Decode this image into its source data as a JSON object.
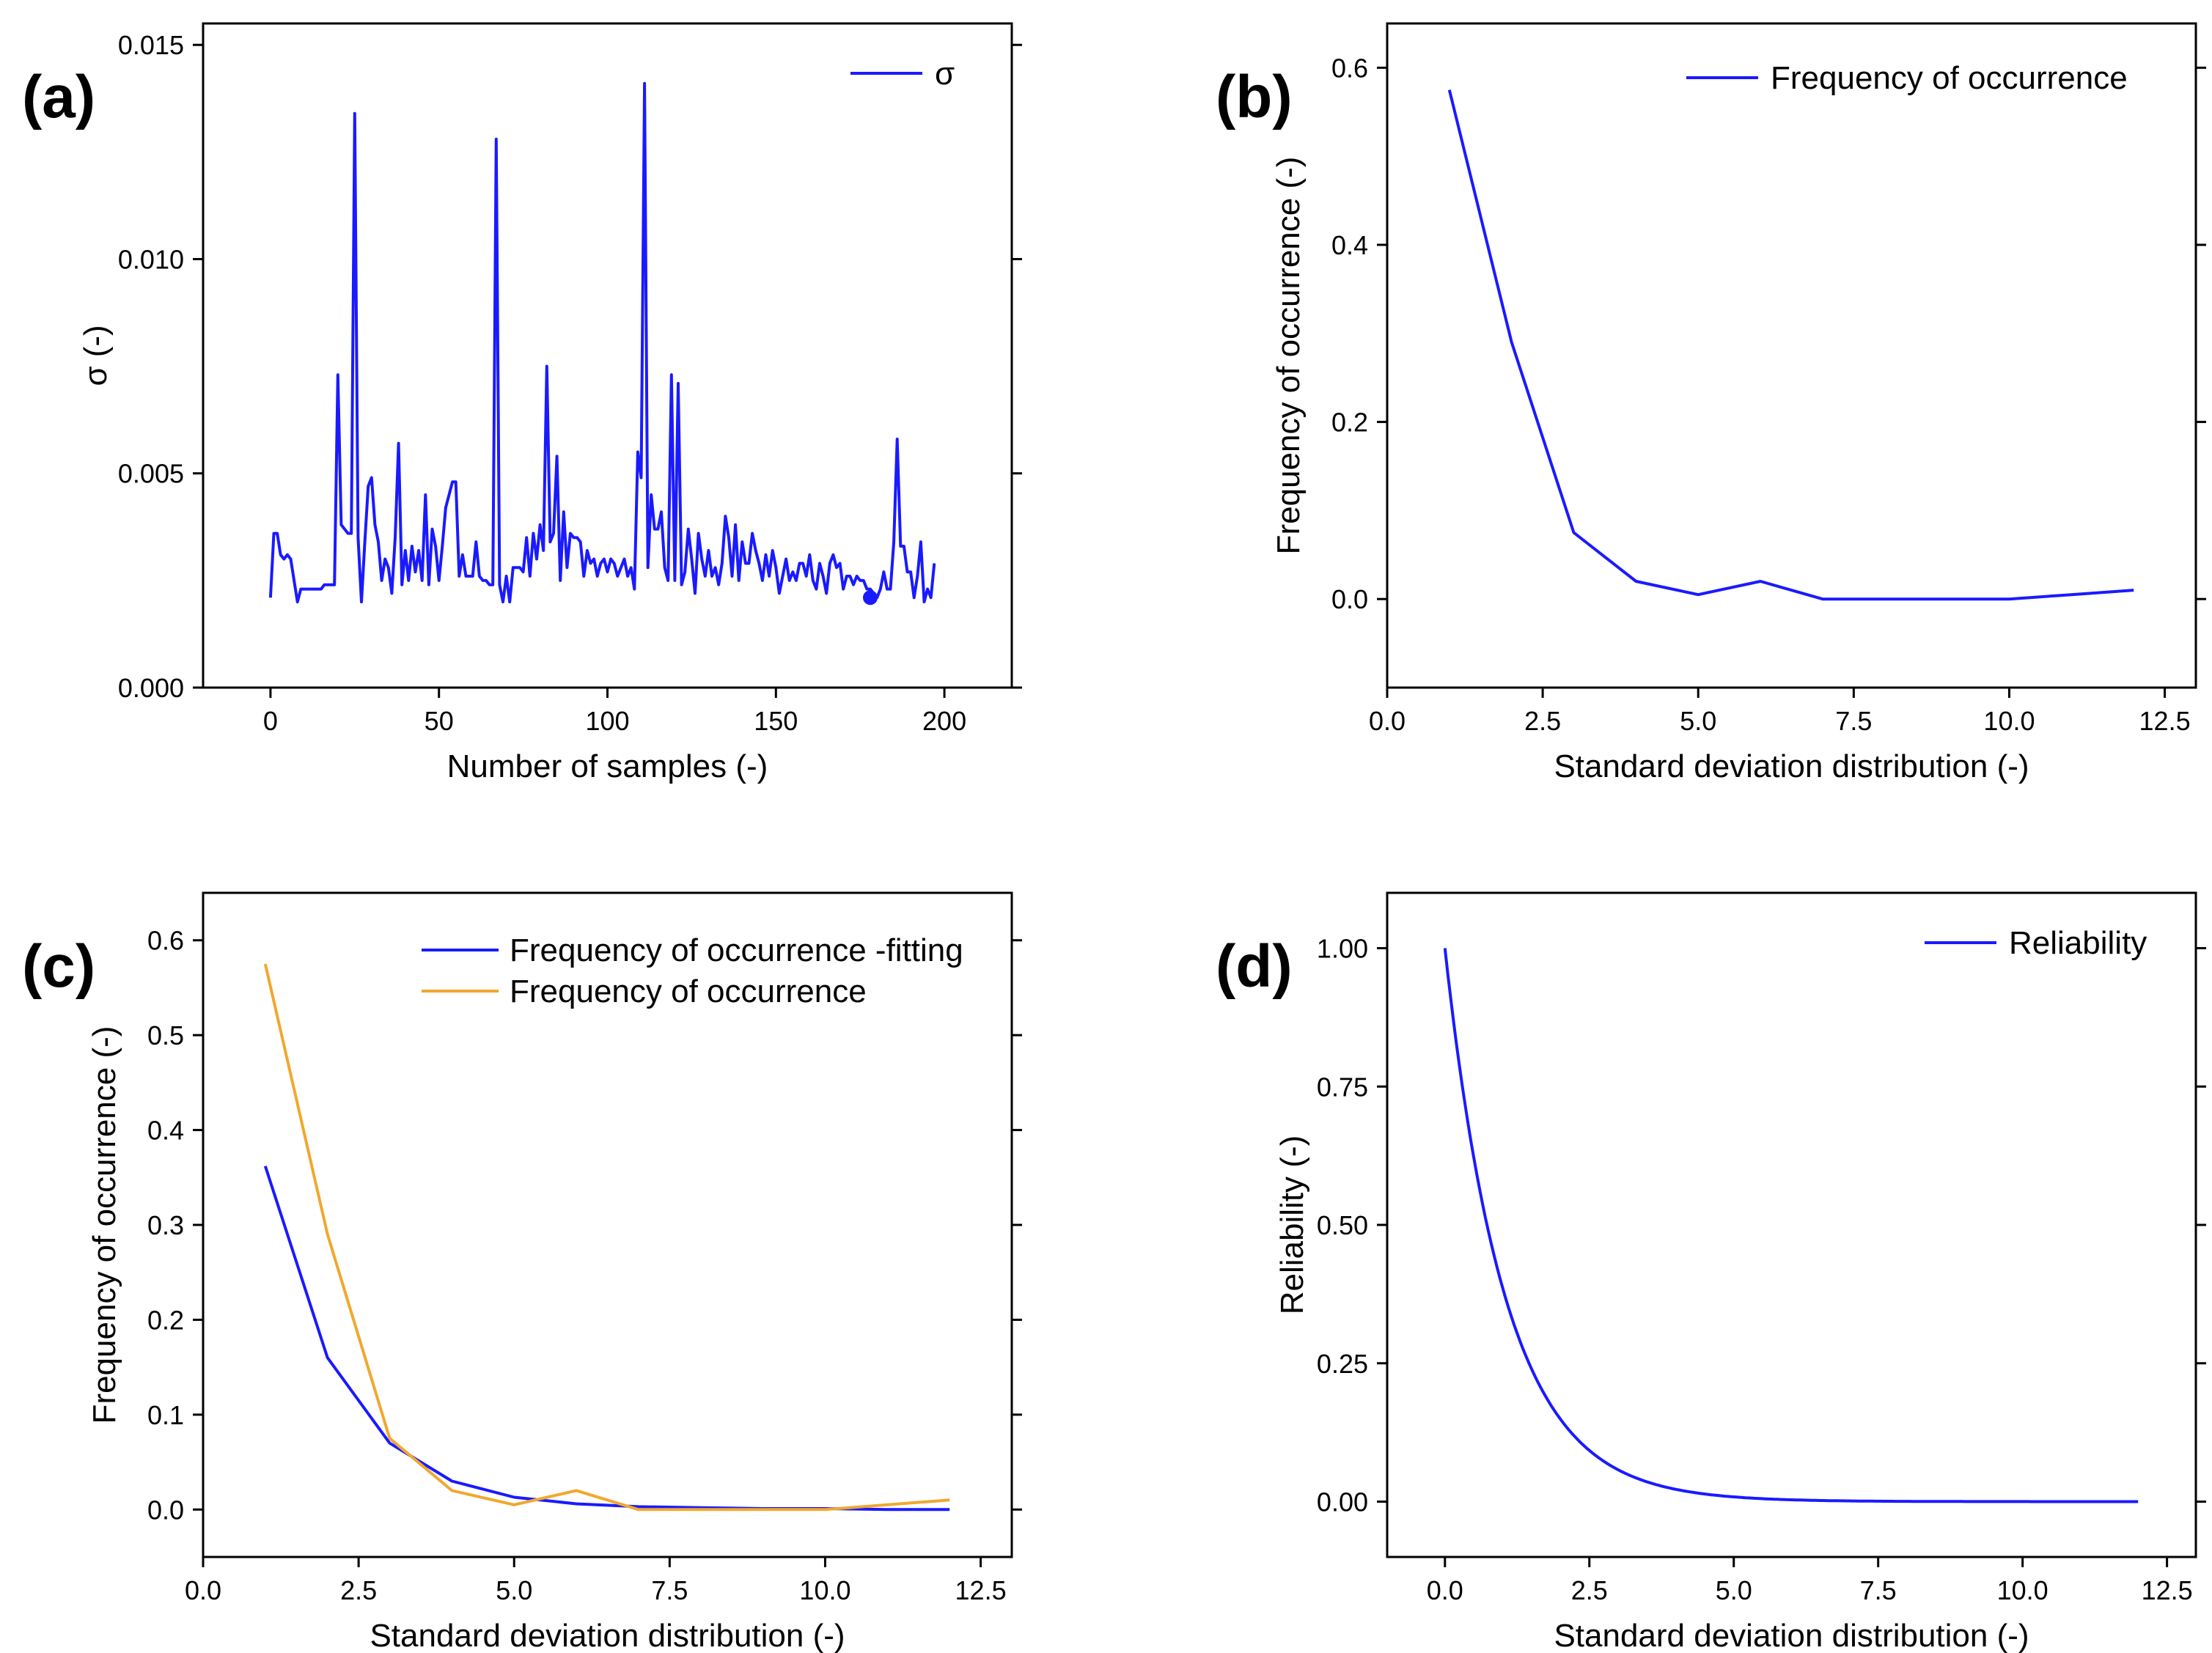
{
  "chart_data": [
    {
      "panel": "(a)",
      "type": "line",
      "xlabel": "Number of samples (-)",
      "ylabel": "σ (-)",
      "xlim": [
        -20,
        220
      ],
      "ylim": [
        0.0,
        0.0155
      ],
      "xticks": [
        "0",
        "50",
        "100",
        "150",
        "200"
      ],
      "xtick_values": [
        0,
        50,
        100,
        150,
        200
      ],
      "yticks": [
        "0.000",
        "0.005",
        "0.010",
        "0.015"
      ],
      "ytick_values": [
        0.0,
        0.005,
        0.01,
        0.015
      ],
      "legend": "top-right",
      "series": [
        {
          "name": "σ",
          "color": "#1a1aff",
          "x": [
            0,
            1,
            2,
            3,
            4,
            5,
            6,
            7,
            8,
            9,
            10,
            11,
            12,
            13,
            14,
            15,
            16,
            17,
            18,
            19,
            20,
            21,
            22,
            23,
            24,
            25,
            26,
            27,
            28,
            29,
            30,
            31,
            32,
            33,
            34,
            35,
            36,
            37,
            38,
            39,
            40,
            41,
            42,
            43,
            44,
            45,
            46,
            47,
            48,
            49,
            50,
            51,
            52,
            53,
            54,
            55,
            56,
            57,
            58,
            59,
            60,
            61,
            62,
            63,
            64,
            65,
            66,
            67,
            68,
            69,
            70,
            71,
            72,
            73,
            74,
            75,
            76,
            77,
            78,
            79,
            80,
            81,
            82,
            83,
            84,
            85,
            86,
            87,
            88,
            89,
            90,
            91,
            92,
            93,
            94,
            95,
            96,
            97,
            98,
            99,
            100,
            101,
            102,
            103,
            104,
            105,
            106,
            107,
            108,
            109,
            110,
            111,
            112,
            113,
            114,
            115,
            116,
            117,
            118,
            119,
            120,
            121,
            122,
            123,
            124,
            125,
            126,
            127,
            128,
            129,
            130,
            131,
            132,
            133,
            134,
            135,
            136,
            137,
            138,
            139,
            140,
            141,
            142,
            143,
            144,
            145,
            146,
            147,
            148,
            149,
            150,
            151,
            152,
            153,
            154,
            155,
            156,
            157,
            158,
            159,
            160,
            161,
            162,
            163,
            164,
            165,
            166,
            167,
            168,
            169,
            170,
            171,
            172,
            173,
            174,
            175,
            176,
            177,
            178,
            179,
            180,
            181,
            182,
            183,
            184,
            185,
            186,
            187,
            188,
            189,
            190,
            191,
            192,
            193,
            194,
            195,
            196,
            197
          ],
          "y": [
            0.0021,
            0.0036,
            0.0036,
            0.0031,
            0.003,
            0.0031,
            0.003,
            0.0025,
            0.002,
            0.0023,
            0.0023,
            0.0023,
            0.0023,
            0.0023,
            0.0023,
            0.0023,
            0.0024,
            0.0024,
            0.0024,
            0.0024,
            0.0073,
            0.0038,
            0.0037,
            0.0036,
            0.0036,
            0.0134,
            0.0035,
            0.002,
            0.0034,
            0.0047,
            0.0049,
            0.0038,
            0.0034,
            0.0025,
            0.003,
            0.0028,
            0.0022,
            0.0035,
            0.0057,
            0.0024,
            0.0032,
            0.0025,
            0.0033,
            0.0027,
            0.0032,
            0.0025,
            0.0045,
            0.0024,
            0.0037,
            0.0033,
            0.0025,
            0.0033,
            0.0042,
            0.0045,
            0.0048,
            0.0048,
            0.0026,
            0.0031,
            0.0026,
            0.0026,
            0.0026,
            0.0034,
            0.0026,
            0.0025,
            0.0025,
            0.0024,
            0.0024,
            0.0128,
            0.0024,
            0.002,
            0.0026,
            0.002,
            0.0028,
            0.0028,
            0.0028,
            0.0027,
            0.0035,
            0.0026,
            0.0036,
            0.003,
            0.0038,
            0.0032,
            0.0075,
            0.0034,
            0.0036,
            0.0054,
            0.0025,
            0.0041,
            0.0028,
            0.0036,
            0.0035,
            0.0035,
            0.0034,
            0.0026,
            0.0032,
            0.0029,
            0.003,
            0.0026,
            0.0029,
            0.003,
            0.0027,
            0.003,
            0.0029,
            0.0026,
            0.0028,
            0.003,
            0.0026,
            0.0028,
            0.0023,
            0.0055,
            0.0049,
            0.0141,
            0.0028,
            0.0045,
            0.0037,
            0.0037,
            0.0041,
            0.0028,
            0.0025,
            0.0073,
            0.0025,
            0.0071,
            0.0024,
            0.0027,
            0.0037,
            0.003,
            0.0022,
            0.0036,
            0.003,
            0.0026,
            0.0032,
            0.0026,
            0.0028,
            0.0024,
            0.0029,
            0.004,
            0.0035,
            0.0026,
            0.0038,
            0.0025,
            0.0034,
            0.0029,
            0.0029,
            0.0036,
            0.0032,
            0.0029,
            0.0025,
            0.0031,
            0.0026,
            0.0032,
            0.0028,
            0.0022,
            0.0026,
            0.003,
            0.0025,
            0.0027,
            0.0025,
            0.0029,
            0.0029,
            0.0026,
            0.0031,
            0.0025,
            0.0023,
            0.0029,
            0.0026,
            0.0022,
            0.0029,
            0.0031,
            0.0028,
            0.0029,
            0.0023,
            0.0026,
            0.0026,
            0.0024,
            0.0026,
            0.0025,
            0.0025,
            0.0023,
            0.0023,
            0.0022,
            0.0021,
            0.0023,
            0.0027,
            0.0023,
            0.0023,
            0.0034,
            0.0058,
            0.0033,
            0.0033,
            0.0027,
            0.0027,
            0.0021,
            0.0026,
            0.0034,
            0.002,
            0.0023,
            0.0021,
            0.0029
          ],
          "marker_point": [
            178,
            0.0021
          ]
        }
      ]
    },
    {
      "panel": "(b)",
      "type": "line",
      "xlabel": "Standard deviation distribution (-)",
      "ylabel": "Frequency of occurrence (-)",
      "xlim": [
        0.0,
        13.0
      ],
      "ylim": [
        -0.1,
        0.65
      ],
      "xticks": [
        "0.0",
        "2.5",
        "5.0",
        "7.5",
        "10.0",
        "12.5"
      ],
      "xtick_values": [
        0.0,
        2.5,
        5.0,
        7.5,
        10.0,
        12.5
      ],
      "yticks": [
        "0.0",
        "0.2",
        "0.4",
        "0.6"
      ],
      "ytick_values": [
        0.0,
        0.2,
        0.4,
        0.6
      ],
      "legend": "top-right",
      "series": [
        {
          "name": "Frequency of occurrence",
          "color": "#1a1aff",
          "x": [
            1,
            2,
            3,
            4,
            5,
            6,
            7,
            8,
            9,
            10,
            11,
            12
          ],
          "y": [
            0.575,
            0.29,
            0.075,
            0.02,
            0.005,
            0.02,
            0.0,
            0.0,
            0.0,
            0.0,
            0.005,
            0.01
          ]
        }
      ]
    },
    {
      "panel": "(c)",
      "type": "line",
      "xlabel": "Standard deviation distribution (-)",
      "ylabel": "Frequency of occurrence (-)",
      "xlim": [
        0.0,
        13.0
      ],
      "ylim": [
        -0.05,
        0.65
      ],
      "xticks": [
        "0.0",
        "2.5",
        "5.0",
        "7.5",
        "10.0",
        "12.5"
      ],
      "xtick_values": [
        0.0,
        2.5,
        5.0,
        7.5,
        10.0,
        12.5
      ],
      "yticks": [
        "0.0",
        "0.1",
        "0.2",
        "0.3",
        "0.4",
        "0.5",
        "0.6"
      ],
      "ytick_values": [
        0.0,
        0.1,
        0.2,
        0.3,
        0.4,
        0.5,
        0.6
      ],
      "legend": "top-right",
      "series": [
        {
          "name": "Frequency of occurrence -fitting",
          "color": "#1a1aff",
          "x": [
            1,
            2,
            3,
            4,
            5,
            6,
            7,
            8,
            9,
            10,
            11,
            12
          ],
          "y": [
            0.362,
            0.16,
            0.07,
            0.03,
            0.013,
            0.006,
            0.003,
            0.002,
            0.001,
            0.001,
            0.0,
            0.0
          ]
        },
        {
          "name": "Frequency of occurrence",
          "color": "#f0a830",
          "x": [
            1,
            2,
            3,
            4,
            5,
            6,
            7,
            8,
            9,
            10,
            11,
            12
          ],
          "y": [
            0.575,
            0.29,
            0.075,
            0.02,
            0.005,
            0.02,
            0.0,
            0.0,
            0.0,
            0.0,
            0.005,
            0.01
          ]
        }
      ]
    },
    {
      "panel": "(d)",
      "type": "line",
      "xlabel": "Standard deviation distribution (-)",
      "ylabel": "Reliability (-)",
      "xlim": [
        -1.0,
        13.0
      ],
      "ylim": [
        -0.1,
        1.1
      ],
      "xticks": [
        "0.0",
        "2.5",
        "5.0",
        "7.5",
        "10.0",
        "12.5"
      ],
      "xtick_values": [
        0.0,
        2.5,
        5.0,
        7.5,
        10.0,
        12.5
      ],
      "yticks": [
        "0.00",
        "0.25",
        "0.50",
        "0.75",
        "1.00"
      ],
      "ytick_values": [
        0.0,
        0.25,
        0.5,
        0.75,
        1.0
      ],
      "legend": "top-right",
      "series": [
        {
          "name": "Reliability",
          "color": "#1a1aff",
          "function": "exp(-x/1.05)",
          "x_range": [
            0,
            12
          ]
        }
      ]
    }
  ]
}
